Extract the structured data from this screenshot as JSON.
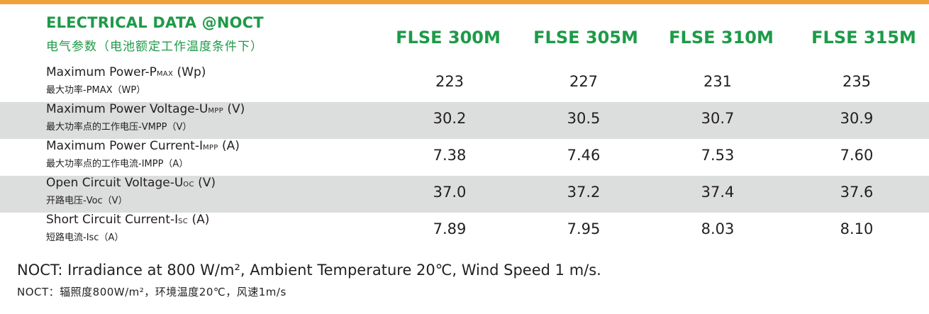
{
  "header": {
    "title": "ELECTRICAL DATA @NOCT",
    "subtitle": "电气参数（电池额定工作温度条件下）",
    "models": [
      "FLSE 300M",
      "FLSE 305M",
      "FLSE 310M",
      "FLSE 315M"
    ]
  },
  "rows": [
    {
      "en_main": "Maximum Power-P",
      "en_sub": "MAX",
      "en_unit": " (Wp)",
      "cn": "最大功率-PMAX（WP）",
      "values": [
        "223",
        "227",
        "231",
        "235"
      ]
    },
    {
      "en_main": "Maximum Power Voltage-U",
      "en_sub": "MPP",
      "en_unit": " (V)",
      "cn": "最大功率点的工作电压-VMPP（V）",
      "values": [
        "30.2",
        "30.5",
        "30.7",
        "30.9"
      ]
    },
    {
      "en_main": "Maximum Power Current-I",
      "en_sub": "MPP",
      "en_unit": " (A)",
      "cn": "最大功率点的工作电流-IMPP（A）",
      "values": [
        "7.38",
        "7.46",
        "7.53",
        "7.60"
      ]
    },
    {
      "en_main": "Open Circuit Voltage-U",
      "en_sub": "OC",
      "en_unit": " (V)",
      "cn": "开路电压-Voc（V）",
      "values": [
        "37.0",
        "37.2",
        "37.4",
        "37.6"
      ]
    },
    {
      "en_main": "Short Circuit Current-I",
      "en_sub": "SC",
      "en_unit": " (A)",
      "cn": "短路电流-Isc（A）",
      "values": [
        "7.89",
        "7.95",
        "8.03",
        "8.10"
      ]
    }
  ],
  "notes": {
    "en": "NOCT: Irradiance at 800 W/m², Ambient Temperature 20℃, Wind Speed 1 m/s.",
    "cn": "NOCT：辐照度800W/m²，环境温度20℃，风速1m/s"
  },
  "colors": {
    "accent_green": "#1e9a48",
    "top_rule": "#f0a23a",
    "row_shade": "#dcdddd"
  }
}
